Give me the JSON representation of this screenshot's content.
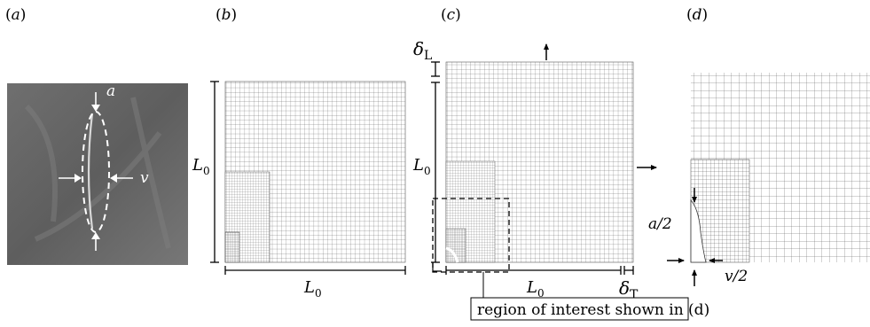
{
  "panels": {
    "a": {
      "label_open": "(",
      "label_letter": "a",
      "label_close": ")",
      "annot_a": "a",
      "annot_v": "v"
    },
    "b": {
      "label_open": "(",
      "label_letter": "b",
      "label_close": ")",
      "dim_L": "L",
      "dim_0": "0",
      "dim_bottom_L": "L",
      "dim_bottom_0": "0"
    },
    "c": {
      "label_open": "(",
      "label_letter": "c",
      "label_close": ")",
      "delta_L_sym": "δ",
      "delta_L_sub": "L",
      "dim_L": "L",
      "dim_0": "0",
      "dim_bottom_L": "L",
      "dim_bottom_0": "0",
      "delta_T_sym": "δ",
      "delta_T_sub": "T",
      "callout": "region of interest shown in (d)"
    },
    "d": {
      "label_open": "(",
      "label_letter": "d",
      "label_close": ")",
      "annot_a2": "a/2",
      "annot_v2": "v/2"
    }
  }
}
